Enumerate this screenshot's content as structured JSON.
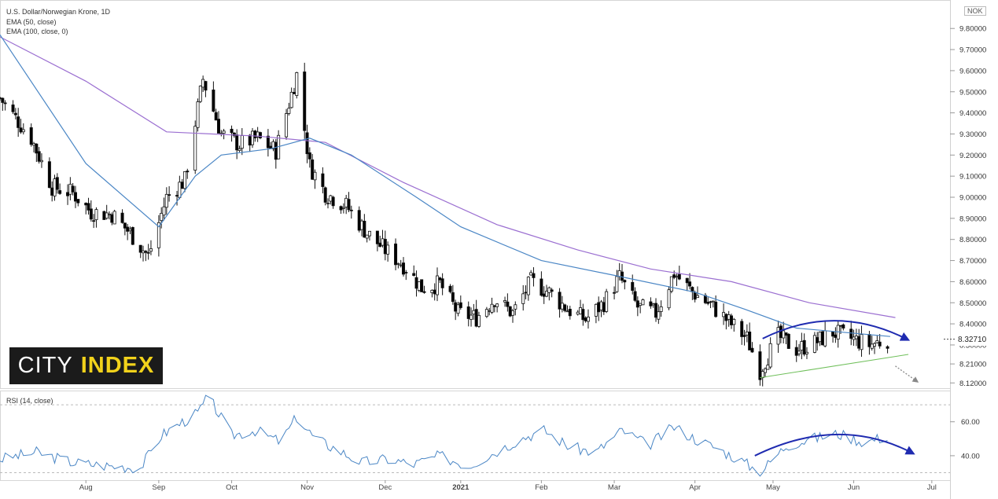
{
  "header": {
    "title": "U.S. Dollar/Norwegian Krone, 1D",
    "ema50": "EMA (50, close)",
    "ema100": "EMA (100, close, 0)",
    "currency": "NOK",
    "current_price": "8.32710"
  },
  "rsi_panel": {
    "label": "RSI (14, close)"
  },
  "logo": {
    "word1": "CITY",
    "word2": "INDEX"
  },
  "colors": {
    "up": "#ffffff",
    "down": "#000000",
    "ema50": "#4a86c5",
    "ema100": "#9b6fd1",
    "rsi": "#4a86c5",
    "arrow": "#1f2bb0",
    "support": "#6fbf5a"
  },
  "chart_data": [
    {
      "type": "candlestick",
      "title": "U.S. Dollar/Norwegian Krone, 1D",
      "y_axis_ticks": [
        "8.12000",
        "8.21000",
        "8.30000",
        "8.40000",
        "8.50000",
        "8.60000",
        "8.70000",
        "8.80000",
        "8.90000",
        "9.00000",
        "9.10000",
        "9.20000",
        "9.30000",
        "9.40000",
        "9.50000",
        "9.60000",
        "9.70000",
        "9.80000"
      ],
      "x_axis_labels": [
        "Aug",
        "Sep",
        "Oct",
        "Nov",
        "Dec",
        "2021",
        "Feb",
        "Mar",
        "Apr",
        "May",
        "Jun",
        "Jul"
      ],
      "x_range": [
        "2020-07-08",
        "2021-07-08"
      ],
      "ylim": [
        8.095,
        9.92
      ],
      "approximate_close_path": [
        [
          "2020-07-08",
          9.47
        ],
        [
          "2020-07-20",
          9.28
        ],
        [
          "2020-07-28",
          9.05
        ],
        [
          "2020-08-05",
          9.02
        ],
        [
          "2020-08-12",
          8.93
        ],
        [
          "2020-08-20",
          8.92
        ],
        [
          "2020-08-27",
          8.83
        ],
        [
          "2020-09-03",
          8.72
        ],
        [
          "2020-09-10",
          9.0
        ],
        [
          "2020-09-17",
          9.08
        ],
        [
          "2020-09-24",
          9.56
        ],
        [
          "2020-10-01",
          9.3
        ],
        [
          "2020-10-08",
          9.25
        ],
        [
          "2020-10-15",
          9.28
        ],
        [
          "2020-10-22",
          9.22
        ],
        [
          "2020-10-30",
          9.58
        ],
        [
          "2020-11-04",
          9.15
        ],
        [
          "2020-11-10",
          9.02
        ],
        [
          "2020-11-18",
          8.96
        ],
        [
          "2020-11-26",
          8.83
        ],
        [
          "2020-12-03",
          8.75
        ],
        [
          "2020-12-10",
          8.68
        ],
        [
          "2020-12-17",
          8.57
        ],
        [
          "2020-12-24",
          8.59
        ],
        [
          "2020-12-31",
          8.45
        ],
        [
          "2021-01-07",
          8.43
        ],
        [
          "2021-01-14",
          8.52
        ],
        [
          "2021-01-21",
          8.45
        ],
        [
          "2021-01-28",
          8.6
        ],
        [
          "2021-02-04",
          8.55
        ],
        [
          "2021-02-11",
          8.47
        ],
        [
          "2021-02-18",
          8.42
        ],
        [
          "2021-02-25",
          8.5
        ],
        [
          "2021-03-03",
          8.62
        ],
        [
          "2021-03-10",
          8.48
        ],
        [
          "2021-03-17",
          8.45
        ],
        [
          "2021-03-24",
          8.64
        ],
        [
          "2021-03-31",
          8.55
        ],
        [
          "2021-04-07",
          8.49
        ],
        [
          "2021-04-14",
          8.41
        ],
        [
          "2021-04-21",
          8.33
        ],
        [
          "2021-04-26",
          8.18
        ],
        [
          "2021-05-03",
          8.34
        ],
        [
          "2021-05-10",
          8.28
        ],
        [
          "2021-05-17",
          8.31
        ],
        [
          "2021-05-24",
          8.36
        ],
        [
          "2021-05-31",
          8.33
        ],
        [
          "2021-06-07",
          8.3
        ],
        [
          "2021-06-14",
          8.327
        ]
      ],
      "ema50_path": [
        [
          "2020-07-08",
          9.77
        ],
        [
          "2020-08-10",
          9.16
        ],
        [
          "2020-09-07",
          8.86
        ],
        [
          "2020-09-21",
          9.1
        ],
        [
          "2020-10-01",
          9.2
        ],
        [
          "2020-10-20",
          9.23
        ],
        [
          "2020-11-04",
          9.28
        ],
        [
          "2020-11-20",
          9.2
        ],
        [
          "2020-12-15",
          9.0
        ],
        [
          "2021-01-01",
          8.86
        ],
        [
          "2021-02-01",
          8.7
        ],
        [
          "2021-03-01",
          8.63
        ],
        [
          "2021-04-01",
          8.55
        ],
        [
          "2021-04-20",
          8.47
        ],
        [
          "2021-05-10",
          8.38
        ],
        [
          "2021-06-15",
          8.34
        ]
      ],
      "ema100_path": [
        [
          "2020-07-08",
          9.76
        ],
        [
          "2020-08-10",
          9.55
        ],
        [
          "2020-09-10",
          9.31
        ],
        [
          "2020-10-15",
          9.29
        ],
        [
          "2020-11-10",
          9.26
        ],
        [
          "2020-12-10",
          9.07
        ],
        [
          "2021-01-15",
          8.87
        ],
        [
          "2021-02-15",
          8.75
        ],
        [
          "2021-03-15",
          8.66
        ],
        [
          "2021-04-15",
          8.6
        ],
        [
          "2021-05-15",
          8.5
        ],
        [
          "2021-06-17",
          8.43
        ]
      ]
    },
    {
      "type": "line",
      "title": "RSI (14, close)",
      "y_axis_ticks": [
        "40.00",
        "60.00"
      ],
      "reference_lines": [
        30,
        70
      ],
      "ylim": [
        27,
        77
      ],
      "approximate_path": [
        [
          "2020-07-08",
          38
        ],
        [
          "2020-07-22",
          42
        ],
        [
          "2020-08-05",
          36
        ],
        [
          "2020-08-19",
          34
        ],
        [
          "2020-08-31",
          33
        ],
        [
          "2020-09-08",
          52
        ],
        [
          "2020-09-14",
          58
        ],
        [
          "2020-09-22",
          65
        ],
        [
          "2020-09-26",
          75
        ],
        [
          "2020-10-05",
          52
        ],
        [
          "2020-10-14",
          55
        ],
        [
          "2020-10-24",
          48
        ],
        [
          "2020-10-30",
          63
        ],
        [
          "2020-11-06",
          50
        ],
        [
          "2020-11-14",
          44
        ],
        [
          "2020-11-24",
          36
        ],
        [
          "2020-12-04",
          38
        ],
        [
          "2020-12-14",
          35
        ],
        [
          "2020-12-24",
          40
        ],
        [
          "2021-01-04",
          34
        ],
        [
          "2021-01-14",
          42
        ],
        [
          "2021-01-24",
          50
        ],
        [
          "2021-02-02",
          55
        ],
        [
          "2021-02-12",
          45
        ],
        [
          "2021-02-22",
          42
        ],
        [
          "2021-03-04",
          55
        ],
        [
          "2021-03-14",
          46
        ],
        [
          "2021-03-24",
          57
        ],
        [
          "2021-04-01",
          50
        ],
        [
          "2021-04-10",
          44
        ],
        [
          "2021-04-20",
          36
        ],
        [
          "2021-04-26",
          30
        ],
        [
          "2021-05-06",
          46
        ],
        [
          "2021-05-16",
          50
        ],
        [
          "2021-05-26",
          53
        ],
        [
          "2021-06-05",
          48
        ],
        [
          "2021-06-15",
          52
        ]
      ]
    }
  ]
}
